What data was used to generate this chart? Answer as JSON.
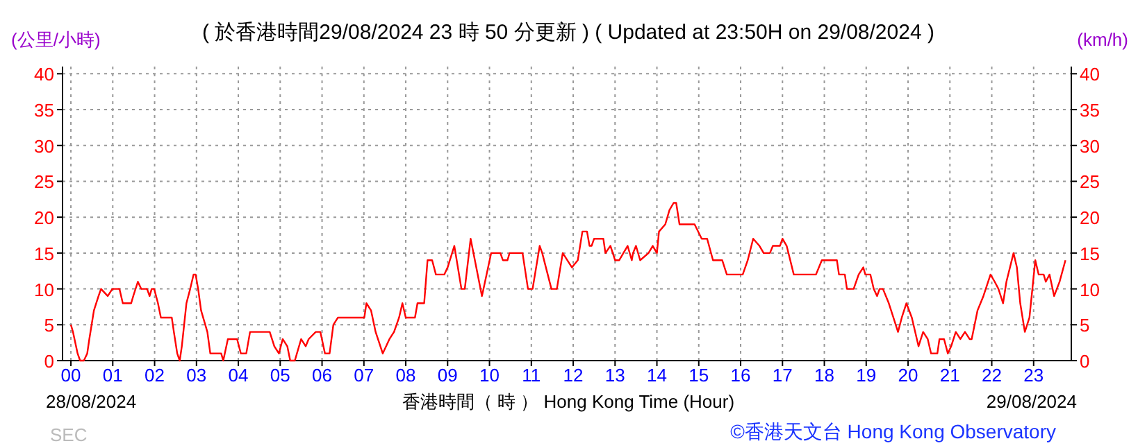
{
  "chart_data": {
    "type": "line",
    "title": "( 於香港時間29/08/2024 23 時 50 分更新 ) ( Updated at 23:50H on 29/08/2024 )",
    "ylabel": "(公里/小時)",
    "y2label": "(km/h)",
    "xlabel": "香港時間（ 時 ） Hong Kong Time (Hour)",
    "annotations": [
      "28/08/2024",
      "29/08/2024",
      "SEC",
      "©香港天文台 Hong Kong Observatory"
    ],
    "xlim": [
      -0.2,
      23.9
    ],
    "ylim": [
      0,
      41
    ],
    "y2lim": [
      0,
      41
    ],
    "xticks": [
      {
        "value": 0,
        "label": "00"
      },
      {
        "value": 1,
        "label": "01"
      },
      {
        "value": 2,
        "label": "02"
      },
      {
        "value": 3,
        "label": "03"
      },
      {
        "value": 4,
        "label": "04"
      },
      {
        "value": 5,
        "label": "05"
      },
      {
        "value": 6,
        "label": "06"
      },
      {
        "value": 7,
        "label": "07"
      },
      {
        "value": 8,
        "label": "08"
      },
      {
        "value": 9,
        "label": "09"
      },
      10,
      11,
      12,
      13,
      14,
      15,
      16,
      17,
      18,
      19,
      20,
      21,
      22,
      23
    ],
    "yticks": [
      0,
      5,
      10,
      15,
      20,
      25,
      30,
      35,
      40
    ],
    "y2ticks": [
      0,
      5,
      10,
      15,
      20,
      25,
      30,
      35,
      40
    ],
    "grid": true,
    "series": [
      {
        "color": "#ff0000",
        "x": [
          0,
          0.05,
          0.16,
          0.22,
          0.31,
          0.39,
          0.44,
          0.55,
          0.66,
          0.72,
          0.88,
          0.99,
          1.16,
          1.24,
          1.44,
          1.49,
          1.6,
          1.68,
          1.82,
          1.88,
          1.93,
          1.99,
          2.08,
          2.15,
          2.41,
          2.46,
          2.54,
          2.6,
          2.65,
          2.76,
          2.85,
          2.93,
          2.98,
          3.04,
          3.11,
          3.26,
          3.33,
          3.59,
          3.64,
          3.75,
          3.97,
          4.06,
          4.19,
          4.28,
          4.75,
          4.86,
          4.97,
          5.06,
          5.17,
          5.24,
          5.35,
          5.5,
          5.61,
          5.68,
          5.85,
          5.96,
          6.07,
          6.18,
          6.27,
          6.38,
          7.01,
          7.06,
          7.17,
          7.28,
          7.45,
          7.61,
          7.72,
          7.84,
          7.92,
          8.0,
          8.22,
          8.28,
          8.44,
          8.52,
          8.63,
          8.72,
          8.92,
          9.0,
          9.16,
          9.33,
          9.41,
          9.55,
          9.82,
          9.93,
          10.04,
          10.26,
          10.32,
          10.43,
          10.48,
          10.79,
          10.92,
          11.03,
          11.2,
          11.26,
          11.48,
          11.61,
          11.75,
          11.97,
          12.11,
          12.22,
          12.33,
          12.39,
          12.44,
          12.5,
          12.72,
          12.77,
          12.89,
          13.0,
          13.1,
          13.2,
          13.3,
          13.4,
          13.43,
          13.5,
          13.6,
          13.8,
          13.9,
          14.0,
          14.05,
          14.2,
          14.3,
          14.4,
          14.46,
          14.54,
          14.9,
          15.07,
          15.2,
          15.34,
          15.56,
          15.67,
          16.05,
          16.17,
          16.3,
          16.45,
          16.55,
          16.7,
          16.77,
          16.94,
          17.0,
          17.1,
          17.27,
          17.8,
          17.94,
          18.05,
          18.3,
          18.35,
          18.49,
          18.54,
          18.7,
          18.82,
          18.93,
          18.98,
          19.1,
          19.18,
          19.26,
          19.32,
          19.4,
          19.54,
          19.65,
          19.76,
          19.85,
          19.96,
          20.09,
          20.25,
          20.36,
          20.47,
          20.55,
          20.7,
          20.75,
          20.86,
          20.95,
          21.03,
          21.14,
          21.25,
          21.36,
          21.47,
          21.52,
          21.66,
          21.8,
          21.97,
          22.07,
          22.16,
          22.27,
          22.35,
          22.52,
          22.6,
          22.68,
          22.79,
          22.9,
          23.04,
          23.12,
          23.24,
          23.29,
          23.38,
          23.49,
          23.62,
          23.76
        ],
        "values": [
          5,
          4,
          1,
          0,
          0,
          1,
          3,
          7,
          9,
          10,
          9,
          10,
          10,
          8,
          8,
          9,
          11,
          10,
          10,
          9,
          10,
          10,
          8,
          6,
          6,
          4,
          1,
          0,
          2,
          8,
          10,
          12,
          12,
          10,
          7,
          4,
          1,
          1,
          0,
          3,
          3,
          1,
          1,
          4,
          4,
          2,
          1,
          3,
          2,
          0,
          0,
          3,
          2,
          3,
          4,
          4,
          1,
          1,
          5,
          6,
          6,
          8,
          7,
          4,
          1,
          3,
          4,
          6,
          8,
          6,
          6,
          8,
          8,
          14,
          14,
          12,
          12,
          13,
          16,
          10,
          10,
          17,
          9,
          12,
          15,
          15,
          14,
          14,
          15,
          15,
          10,
          10,
          16,
          15,
          10,
          10,
          15,
          13,
          14,
          18,
          18,
          16,
          16,
          17,
          17,
          15,
          16,
          14,
          14,
          15,
          16,
          14,
          15,
          16,
          14,
          15,
          16,
          15,
          18,
          19,
          21,
          22,
          22,
          19,
          19,
          17,
          17,
          14,
          14,
          12,
          12,
          14,
          17,
          16,
          15,
          15,
          16,
          16,
          17,
          16,
          12,
          12,
          14,
          14,
          14,
          12,
          12,
          10,
          10,
          12,
          13,
          12,
          12,
          10,
          9,
          10,
          10,
          8,
          6,
          4,
          6,
          8,
          6,
          2,
          4,
          3,
          1,
          1,
          3,
          3,
          1,
          2,
          4,
          3,
          4,
          3,
          3,
          7,
          9,
          12,
          11,
          10,
          8,
          11,
          15,
          13,
          8,
          4,
          6,
          14,
          12,
          12,
          11,
          12,
          9,
          11,
          14
        ]
      }
    ]
  }
}
